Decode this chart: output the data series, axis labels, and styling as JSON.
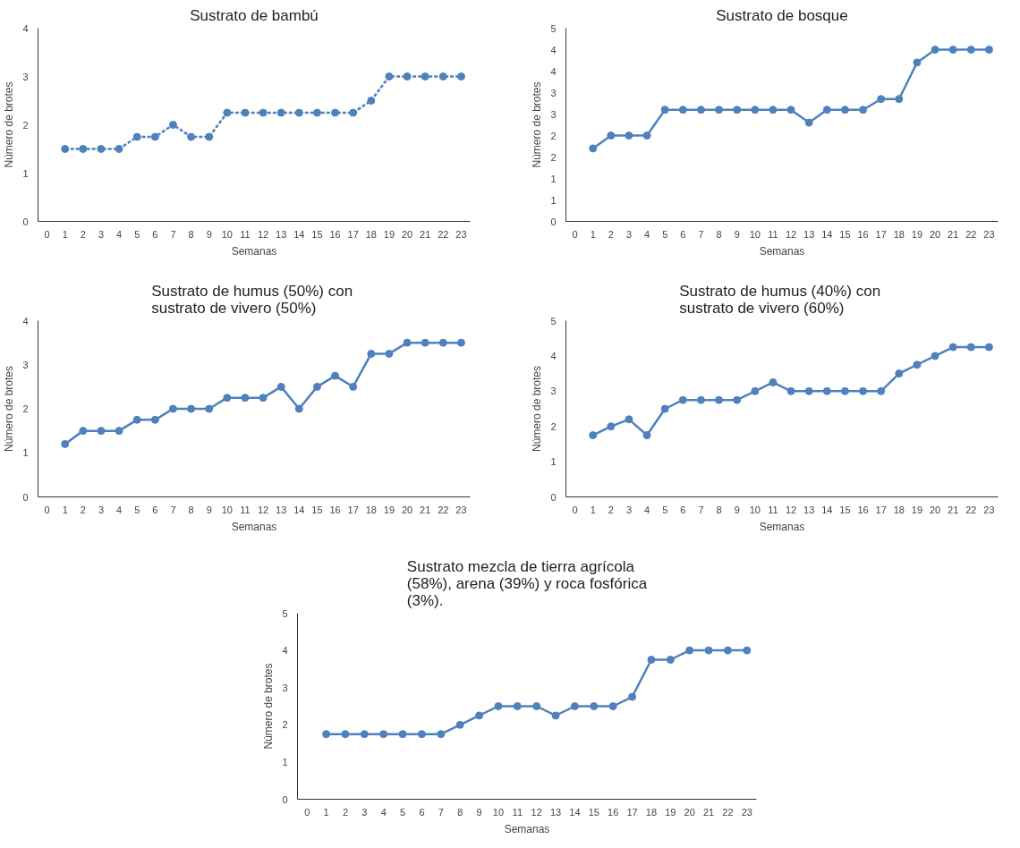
{
  "chart_data": [
    {
      "type": "line",
      "title": "Sustrato de bambú",
      "xlabel": "Semanas",
      "ylabel": "Número de brotes",
      "x": [
        1,
        2,
        3,
        4,
        5,
        6,
        7,
        8,
        9,
        10,
        11,
        12,
        13,
        14,
        15,
        16,
        17,
        18,
        19,
        20,
        21,
        22,
        23
      ],
      "series": [
        {
          "color": "#4f81bd",
          "values": [
            1.5,
            1.5,
            1.5,
            1.5,
            1.75,
            1.75,
            2,
            1.75,
            1.75,
            2.25,
            2.25,
            2.25,
            2.25,
            2.25,
            2.25,
            2.25,
            2.25,
            2.5,
            3,
            3,
            3,
            3,
            3
          ],
          "line_style": "dashed"
        }
      ],
      "xlim": [
        -0.5,
        23.5
      ],
      "xticks": [
        0,
        1,
        2,
        3,
        4,
        5,
        6,
        7,
        8,
        9,
        10,
        11,
        12,
        13,
        14,
        15,
        16,
        17,
        18,
        19,
        20,
        21,
        22,
        23
      ],
      "ylim": [
        0,
        4
      ],
      "yticks": [
        0,
        1,
        2,
        3,
        4
      ],
      "marker": "circle",
      "grid": false
    },
    {
      "type": "line",
      "title": "Sustrato de bosque",
      "xlabel": "Semanas",
      "ylabel": "Número de brotes",
      "x": [
        1,
        2,
        3,
        4,
        5,
        6,
        7,
        8,
        9,
        10,
        11,
        12,
        13,
        14,
        15,
        16,
        17,
        18,
        19,
        20,
        21,
        22,
        23
      ],
      "series": [
        {
          "color": "#4f81bd",
          "values": [
            1.7,
            2,
            2,
            2,
            2.6,
            2.6,
            2.6,
            2.6,
            2.6,
            2.6,
            2.6,
            2.6,
            2.3,
            2.6,
            2.6,
            2.6,
            2.85,
            2.85,
            3.7,
            4,
            4,
            4,
            4
          ]
        }
      ],
      "xlim": [
        -0.5,
        23.5
      ],
      "xticks": [
        0,
        1,
        2,
        3,
        4,
        5,
        6,
        7,
        8,
        9,
        10,
        11,
        12,
        13,
        14,
        15,
        16,
        17,
        18,
        19,
        20,
        21,
        22,
        23
      ],
      "ylim": [
        0,
        4.5
      ],
      "yticks": [
        0,
        {
          "value": 0.5,
          "label": "1"
        },
        1,
        {
          "value": 1.5,
          "label": "2"
        },
        2,
        {
          "value": 2.5,
          "label": "3"
        },
        3,
        {
          "value": 3.5,
          "label": "4"
        },
        4,
        {
          "value": 4.5,
          "label": "5"
        }
      ],
      "marker": "circle",
      "grid": false
    },
    {
      "type": "line",
      "title": "Sustrato  de humus (50%) con sustrato de vivero (50%)",
      "xlabel": "Semanas",
      "ylabel": "Número de brotes",
      "x": [
        1,
        2,
        3,
        4,
        5,
        6,
        7,
        8,
        9,
        10,
        11,
        12,
        13,
        14,
        15,
        16,
        17,
        18,
        19,
        20,
        21,
        22,
        23
      ],
      "series": [
        {
          "color": "#4f81bd",
          "values": [
            1.2,
            1.5,
            1.5,
            1.5,
            1.75,
            1.75,
            2,
            2,
            2,
            2.25,
            2.25,
            2.25,
            2.5,
            2,
            2.5,
            2.75,
            2.5,
            3.25,
            3.25,
            3.5,
            3.5,
            3.5,
            3.5
          ]
        }
      ],
      "xlim": [
        -0.5,
        23.5
      ],
      "xticks": [
        0,
        1,
        2,
        3,
        4,
        5,
        6,
        7,
        8,
        9,
        10,
        11,
        12,
        13,
        14,
        15,
        16,
        17,
        18,
        19,
        20,
        21,
        22,
        23
      ],
      "ylim": [
        0,
        4
      ],
      "yticks": [
        0,
        1,
        2,
        3,
        4
      ],
      "marker": "circle",
      "grid": false
    },
    {
      "type": "line",
      "title": "Sustrato  de humus (40%) con sustrato de vivero (60%)",
      "xlabel": "Semanas",
      "ylabel": "Número de brotes",
      "x": [
        1,
        2,
        3,
        4,
        5,
        6,
        7,
        8,
        9,
        10,
        11,
        12,
        13,
        14,
        15,
        16,
        17,
        18,
        19,
        20,
        21,
        22,
        23
      ],
      "series": [
        {
          "color": "#4f81bd",
          "values": [
            1.75,
            2,
            2.2,
            1.75,
            2.5,
            2.75,
            2.75,
            2.75,
            2.75,
            3,
            3.25,
            3,
            3,
            3,
            3,
            3,
            3,
            3.5,
            3.75,
            4,
            4.25,
            4.25,
            4.25
          ]
        }
      ],
      "xlim": [
        -0.5,
        23.5
      ],
      "xticks": [
        0,
        1,
        2,
        3,
        4,
        5,
        6,
        7,
        8,
        9,
        10,
        11,
        12,
        13,
        14,
        15,
        16,
        17,
        18,
        19,
        20,
        21,
        22,
        23
      ],
      "ylim": [
        0,
        5
      ],
      "yticks": [
        0,
        1,
        2,
        3,
        4,
        5
      ],
      "marker": "circle",
      "grid": false
    },
    {
      "type": "line",
      "title": "Sustrato mezcla de tierra agrícola (58%), arena (39%) y roca fosfórica (3%).",
      "xlabel": "Semanas",
      "ylabel": "Número de brotes",
      "x": [
        1,
        2,
        3,
        4,
        5,
        6,
        7,
        8,
        9,
        10,
        11,
        12,
        13,
        14,
        15,
        16,
        17,
        18,
        19,
        20,
        21,
        22,
        23
      ],
      "series": [
        {
          "color": "#4f81bd",
          "values": [
            1.75,
            1.75,
            1.75,
            1.75,
            1.75,
            1.75,
            1.75,
            2,
            2.25,
            2.5,
            2.5,
            2.5,
            2.25,
            2.5,
            2.5,
            2.5,
            2.75,
            3.75,
            3.75,
            4,
            4,
            4,
            4
          ]
        }
      ],
      "xlim": [
        -0.5,
        23.5
      ],
      "xticks": [
        0,
        1,
        2,
        3,
        4,
        5,
        6,
        7,
        8,
        9,
        10,
        11,
        12,
        13,
        14,
        15,
        16,
        17,
        18,
        19,
        20,
        21,
        22,
        23
      ],
      "ylim": [
        0,
        5
      ],
      "yticks": [
        0,
        1,
        2,
        3,
        4,
        5
      ],
      "marker": "circle",
      "grid": false
    }
  ]
}
